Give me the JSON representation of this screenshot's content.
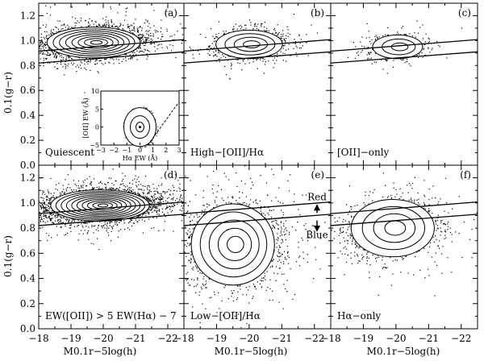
{
  "chart_data": {
    "type": "scatter",
    "xlabel": "M0.1r−5log(h)",
    "ylabel": "0.1(g−r)",
    "xlim": [
      -18,
      -22.5
    ],
    "ylim": [
      0.0,
      1.3
    ],
    "xticks": [
      "−18",
      "−19",
      "−20",
      "−21",
      "−22"
    ],
    "yticks": [
      "0.0",
      "0.2",
      "0.4",
      "0.6",
      "0.8",
      "1.0",
      "1.2"
    ],
    "x_axis_reversed": true,
    "grid": false,
    "separator_lines": [
      {
        "x": [
          -18,
          -22.5
        ],
        "y": [
          0.915,
          1.008
        ]
      },
      {
        "x": [
          -18,
          -22.5
        ],
        "y": [
          0.82,
          0.91
        ]
      }
    ],
    "panels": [
      {
        "tag": "(a)",
        "label": "Quiescent",
        "center": [
          -19.7,
          0.985
        ],
        "spread": [
          0.85,
          0.065
        ],
        "n_contours": 8
      },
      {
        "tag": "(b)",
        "label": "High−[OII]/Hα",
        "center": [
          -20.0,
          0.97
        ],
        "spread": [
          0.6,
          0.06
        ],
        "n_contours": 4
      },
      {
        "tag": "(c)",
        "label": "[OII]−only",
        "center": [
          -20.05,
          0.95
        ],
        "spread": [
          0.45,
          0.05
        ],
        "n_contours": 3
      },
      {
        "tag": "(d)",
        "label": "EW([OII]) > 5 EW(Hα) − 7",
        "center": [
          -19.9,
          0.98
        ],
        "spread": [
          0.9,
          0.065
        ],
        "n_contours": 10
      },
      {
        "tag": "(e)",
        "label": "Low−[OII]/Hα",
        "center": [
          -19.5,
          0.67
        ],
        "spread": [
          0.75,
          0.17
        ],
        "n_contours": 5
      },
      {
        "tag": "(f)",
        "label": "Hα−only",
        "center": [
          -19.9,
          0.8
        ],
        "spread": [
          0.75,
          0.12
        ],
        "n_contours": 4
      }
    ],
    "arrow_labels": {
      "up": "Red",
      "down": "Blue"
    },
    "inset": {
      "xlabel": "Hα EW (Å)",
      "ylabel": "[OII] EW (Å)",
      "xlim": [
        -3,
        3
      ],
      "ylim": [
        -5,
        10
      ],
      "xticks": [
        "−3",
        "−2",
        "−1",
        "0",
        "1",
        "2",
        "3"
      ],
      "yticks": [
        "−5",
        "0",
        "5",
        "10"
      ],
      "center": [
        0,
        0
      ]
    }
  }
}
